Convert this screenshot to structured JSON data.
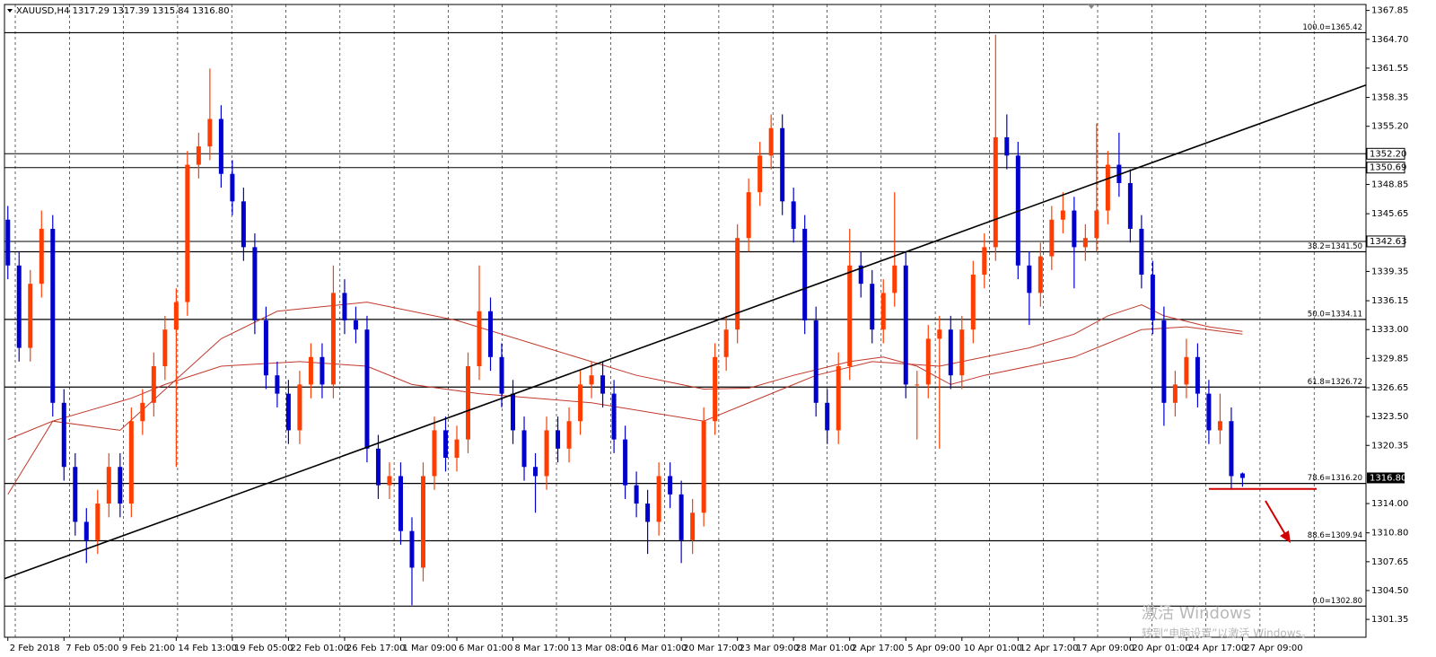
{
  "chart_data": {
    "type": "candlestick",
    "header": "XAUUSD,H4  1317.29 1317.39 1315.84 1316.80",
    "up_color": "#ff3d00",
    "down_color": "#0000cd",
    "open": [
      1345,
      1340,
      1331,
      1338,
      1344,
      1325,
      1318,
      1312,
      1310,
      1314,
      1318,
      1314,
      1323,
      1325,
      1329,
      1333,
      1336,
      1351,
      1353,
      1356,
      1350,
      1347,
      1342,
      1334,
      1328,
      1326,
      1322,
      1327,
      1330,
      1327,
      1337,
      1334,
      1333,
      1320,
      1316,
      1317,
      1311,
      1307,
      1317,
      1322,
      1319,
      1321,
      1329,
      1335,
      1330,
      1326,
      1322,
      1318,
      1317,
      1322,
      1320,
      1323,
      1327,
      1328,
      1326,
      1321,
      1316,
      1314,
      1312,
      1317,
      1315,
      1310,
      1313,
      1323,
      1330,
      1333,
      1343,
      1348,
      1352,
      1355,
      1347,
      1344,
      1334,
      1325,
      1322,
      1329,
      1340,
      1338,
      1333,
      1337,
      1340,
      1327,
      1327,
      1332,
      1333,
      1328,
      1333,
      1339,
      1342,
      1354,
      1352,
      1340,
      1337,
      1341,
      1345,
      1346,
      1342,
      1343,
      1346,
      1351,
      1349,
      1344,
      1339,
      1334,
      1325,
      1327,
      1330,
      1326,
      1322,
      1323,
      1317.29
    ],
    "high": [
      1346.5,
      1341.5,
      1339.5,
      1346,
      1345.5,
      1326.5,
      1319.5,
      1313.5,
      1315.5,
      1319.5,
      1319.5,
      1324.5,
      1326.5,
      1330.5,
      1334.5,
      1337.5,
      1352.5,
      1354.5,
      1361.5,
      1357.5,
      1351.5,
      1348.5,
      1343.5,
      1335.5,
      1329.5,
      1327.5,
      1328.5,
      1331.5,
      1331.5,
      1340,
      1338.5,
      1335.5,
      1334.5,
      1321.5,
      1318.5,
      1318.5,
      1312.5,
      1318.5,
      1323.5,
      1323.5,
      1322.5,
      1330.5,
      1340,
      1336.5,
      1331.5,
      1327.5,
      1323.5,
      1319.5,
      1323.5,
      1323.5,
      1324.5,
      1328.5,
      1329.5,
      1329.5,
      1327.5,
      1322.5,
      1317.5,
      1315.5,
      1318.5,
      1318.5,
      1316.5,
      1314.5,
      1324.5,
      1331.5,
      1334.5,
      1344.5,
      1349.5,
      1353.5,
      1356.5,
      1356.5,
      1348.5,
      1345.5,
      1335.5,
      1326.5,
      1330.5,
      1344,
      1341.5,
      1339.5,
      1338.5,
      1348,
      1341.5,
      1328.5,
      1333.5,
      1334.5,
      1334.5,
      1334.5,
      1340.5,
      1343.5,
      1365.2,
      1356.5,
      1353.5,
      1341.5,
      1342.5,
      1346.5,
      1348,
      1347.5,
      1344.5,
      1355.5,
      1352.5,
      1354.5,
      1350.5,
      1345.5,
      1340.5,
      1335.5,
      1328.5,
      1332,
      1331.5,
      1327.5,
      1326,
      1324.5,
      1317.39
    ],
    "low": [
      1338.5,
      1329.5,
      1329.5,
      1336.5,
      1323.5,
      1316.5,
      1310.5,
      1307.5,
      1308.5,
      1312.5,
      1312.5,
      1312.5,
      1321.5,
      1323.5,
      1327.5,
      1318,
      1334.5,
      1349.5,
      1351.5,
      1348.5,
      1345.5,
      1340.5,
      1332.5,
      1326.5,
      1324.5,
      1320.5,
      1320.5,
      1325.5,
      1325.5,
      1325.5,
      1332.5,
      1331.5,
      1318.5,
      1314.5,
      1314.5,
      1309.5,
      1302.9,
      1305.5,
      1315.5,
      1317.5,
      1317.5,
      1319.5,
      1327.5,
      1328.5,
      1324.5,
      1320.5,
      1316.5,
      1313,
      1315.5,
      1318.5,
      1318.5,
      1321.5,
      1325.5,
      1324.5,
      1319.5,
      1314.5,
      1312.5,
      1308.5,
      1310.5,
      1313.5,
      1307.5,
      1308.5,
      1311.5,
      1321.5,
      1328.5,
      1331.5,
      1341.5,
      1346.5,
      1350.5,
      1345.5,
      1342.5,
      1332.5,
      1323.5,
      1320.5,
      1320.5,
      1327.5,
      1336.5,
      1331.5,
      1331.5,
      1335.5,
      1325.5,
      1321,
      1325.5,
      1320,
      1326.5,
      1326.5,
      1331.5,
      1337.5,
      1340.5,
      1350.5,
      1338.5,
      1333.5,
      1335.5,
      1339.5,
      1343.5,
      1337.5,
      1340.5,
      1341.5,
      1344.5,
      1347.5,
      1342.5,
      1337.5,
      1332.5,
      1322.5,
      1323.5,
      1325.5,
      1324.5,
      1320.5,
      1320.5,
      1315.5,
      1315.84
    ],
    "close": [
      1340,
      1331,
      1338,
      1344,
      1325,
      1318,
      1312,
      1310,
      1314,
      1318,
      1314,
      1323,
      1325,
      1329,
      1333,
      1336,
      1351,
      1353,
      1356,
      1350,
      1347,
      1342,
      1334,
      1328,
      1326,
      1322,
      1327,
      1330,
      1327,
      1337,
      1334,
      1333,
      1320,
      1316,
      1317,
      1311,
      1307,
      1317,
      1322,
      1319,
      1321,
      1329,
      1335,
      1330,
      1326,
      1322,
      1318,
      1317,
      1322,
      1320,
      1323,
      1327,
      1328,
      1326,
      1321,
      1316,
      1314,
      1312,
      1317,
      1315,
      1310,
      1313,
      1323,
      1330,
      1333,
      1343,
      1348,
      1352,
      1355,
      1347,
      1344,
      1334,
      1325,
      1322,
      1329,
      1340,
      1338,
      1333,
      1337,
      1340,
      1327,
      1327,
      1332,
      1333,
      1328,
      1333,
      1339,
      1342,
      1354,
      1352,
      1340,
      1337,
      1341,
      1345,
      1346,
      1342,
      1343,
      1346,
      1351,
      1349,
      1344,
      1339,
      1334,
      1325,
      1327,
      1330,
      1326,
      1322,
      1323,
      1317,
      1316.8
    ],
    "xlim": [
      -0.3,
      121
    ],
    "ylim": [
      1299.4,
      1368.5
    ],
    "xticks": [
      {
        "value": 0,
        "label": "2 Feb 2018"
      },
      {
        "value": 5,
        "label": "7 Feb 05:00"
      },
      {
        "value": 10,
        "label": "9 Feb 21:00"
      },
      {
        "value": 15,
        "label": "14 Feb 13:00"
      },
      {
        "value": 20,
        "label": "19 Feb 05:00"
      },
      {
        "value": 25,
        "label": "22 Feb 01:00"
      },
      {
        "value": 30,
        "label": "26 Feb 17:00"
      },
      {
        "value": 35,
        "label": "1 Mar 09:00"
      },
      {
        "value": 40,
        "label": "6 Mar 01:00"
      },
      {
        "value": 45,
        "label": "8 Mar 17:00"
      },
      {
        "value": 50,
        "label": "13 Mar 08:00"
      },
      {
        "value": 55,
        "label": "16 Mar 01:00"
      },
      {
        "value": 60,
        "label": "20 Mar 17:00"
      },
      {
        "value": 65,
        "label": "23 Mar 09:00"
      },
      {
        "value": 70,
        "label": "28 Mar 01:00"
      },
      {
        "value": 75,
        "label": "2 Apr 17:00"
      },
      {
        "value": 80,
        "label": "5 Apr 09:00"
      },
      {
        "value": 85,
        "label": "10 Apr 01:00"
      },
      {
        "value": 90,
        "label": "12 Apr 17:00"
      },
      {
        "value": 95,
        "label": "17 Apr 09:00"
      },
      {
        "value": 100,
        "label": "20 Apr 01:00"
      },
      {
        "value": 105,
        "label": "24 Apr 17:00"
      },
      {
        "value": 110,
        "label": "27 Apr 09:00"
      }
    ],
    "yticks": [
      {
        "value": 1367.85,
        "label": "1367.85"
      },
      {
        "value": 1364.7,
        "label": "1364.70"
      },
      {
        "value": 1361.55,
        "label": "1361.55"
      },
      {
        "value": 1358.35,
        "label": "1358.35"
      },
      {
        "value": 1355.2,
        "label": "1355.20"
      },
      {
        "value": 1348.85,
        "label": "1348.85"
      },
      {
        "value": 1345.65,
        "label": "1345.65"
      },
      {
        "value": 1339.35,
        "label": "1339.35"
      },
      {
        "value": 1336.15,
        "label": "1336.15"
      },
      {
        "value": 1333,
        "label": "1333.00"
      },
      {
        "value": 1329.85,
        "label": "1329.85"
      },
      {
        "value": 1326.65,
        "label": "1326.65"
      },
      {
        "value": 1323.5,
        "label": "1323.50"
      },
      {
        "value": 1320.35,
        "label": "1320.35"
      },
      {
        "value": 1314,
        "label": "1314.00"
      },
      {
        "value": 1310.8,
        "label": "1310.80"
      },
      {
        "value": 1307.65,
        "label": "1307.65"
      },
      {
        "value": 1304.5,
        "label": "1304.50"
      },
      {
        "value": 1301.35,
        "label": "1301.35"
      }
    ],
    "grid": true,
    "fib_levels": [
      {
        "value": 1365.42,
        "label": "100.0=1365.42"
      },
      {
        "value": 1341.5,
        "label": "38.2=1341.50"
      },
      {
        "value": 1334.11,
        "label": "50.0=1334.11"
      },
      {
        "value": 1326.72,
        "label": "61.8=1326.72"
      },
      {
        "value": 1316.2,
        "label": "78.6=1316.20"
      },
      {
        "value": 1309.94,
        "label": "88.6=1309.94"
      },
      {
        "value": 1302.8,
        "label": "0.0=1302.80"
      }
    ],
    "price_lines": [
      {
        "value": 1352.2,
        "label": "1352.20"
      },
      {
        "value": 1350.69,
        "label": "1350.69"
      },
      {
        "value": 1342.63,
        "label": "1342.63"
      }
    ],
    "current_price": {
      "value": 1316.8,
      "label": "1316.80"
    },
    "moving_averages": [
      {
        "color": "#c0392b",
        "x": [
          0,
          4,
          10,
          19,
          24,
          32,
          40,
          48,
          56,
          62,
          66,
          70,
          75,
          78,
          81,
          84,
          87,
          91,
          95,
          98,
          101,
          105,
          110
        ],
        "values": [
          1321,
          1323,
          1322,
          1332,
          1335,
          1336,
          1334,
          1331,
          1328,
          1326.5,
          1326.6,
          1328,
          1329.5,
          1330,
          1329,
          1327,
          1328,
          1329,
          1330,
          1331.5,
          1333,
          1333.3,
          1332.5
        ]
      },
      {
        "color": "#c0392b",
        "x": [
          0,
          4,
          11,
          14,
          19,
          26,
          32,
          36,
          42,
          52,
          62,
          68,
          72,
          77,
          83,
          87,
          91,
          95,
          98,
          101,
          103,
          107,
          110
        ],
        "values": [
          1315,
          1323,
          1325.5,
          1327,
          1329,
          1329.5,
          1329,
          1327,
          1326,
          1325,
          1323,
          1326,
          1328,
          1329.5,
          1329,
          1330,
          1331,
          1332.5,
          1334.5,
          1335.7,
          1334.5,
          1333.3,
          1332.8
        ]
      }
    ],
    "trendline": {
      "color": "#000000",
      "x": [
        -0.3,
        121
      ],
      "values": [
        1305.8,
        1359.7
      ]
    },
    "support_line": {
      "color": "#d00000",
      "x": [
        107,
        116.6
      ],
      "value": 1315.6
    }
  },
  "watermark": {
    "line1": "激活 Windows",
    "line2": "转到“电脑设置”以激活 Windows。"
  }
}
